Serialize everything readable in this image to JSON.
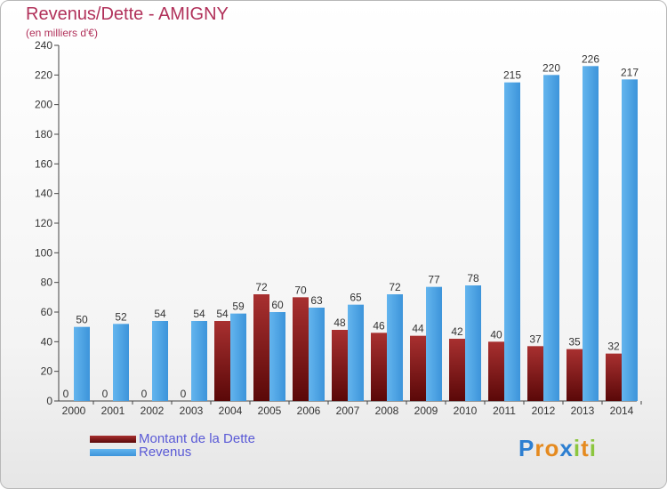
{
  "chart_data": {
    "type": "bar",
    "title": "Revenus/Dette - AMIGNY",
    "subtitle": "(en milliers d'€)",
    "categories": [
      "2000",
      "2001",
      "2002",
      "2003",
      "2004",
      "2005",
      "2006",
      "2007",
      "2008",
      "2009",
      "2010",
      "2011",
      "2012",
      "2013",
      "2014"
    ],
    "series": [
      {
        "name": "Montant de la Dette",
        "color": "#7a1010",
        "values": [
          0,
          0,
          0,
          0,
          54,
          72,
          70,
          48,
          46,
          44,
          42,
          40,
          37,
          35,
          32
        ]
      },
      {
        "name": "Revenus",
        "color": "#4aa3e6",
        "values": [
          50,
          52,
          54,
          54,
          59,
          60,
          63,
          65,
          72,
          77,
          78,
          215,
          220,
          226,
          217
        ]
      }
    ],
    "ylim": [
      0,
      240
    ],
    "yticks": [
      0,
      20,
      40,
      60,
      80,
      100,
      120,
      140,
      160,
      180,
      200,
      220,
      240
    ],
    "grid": false,
    "legend_position": "bottom-left"
  },
  "logo": {
    "text": "Proxiti",
    "letters": [
      "P",
      "r",
      "o",
      "x",
      "i",
      "t",
      "i"
    ],
    "colors": [
      "#2d7fd1",
      "#e58a1f",
      "#e58a1f",
      "#2d7fd1",
      "#8cc63f",
      "#e58a1f",
      "#8cc63f"
    ]
  }
}
